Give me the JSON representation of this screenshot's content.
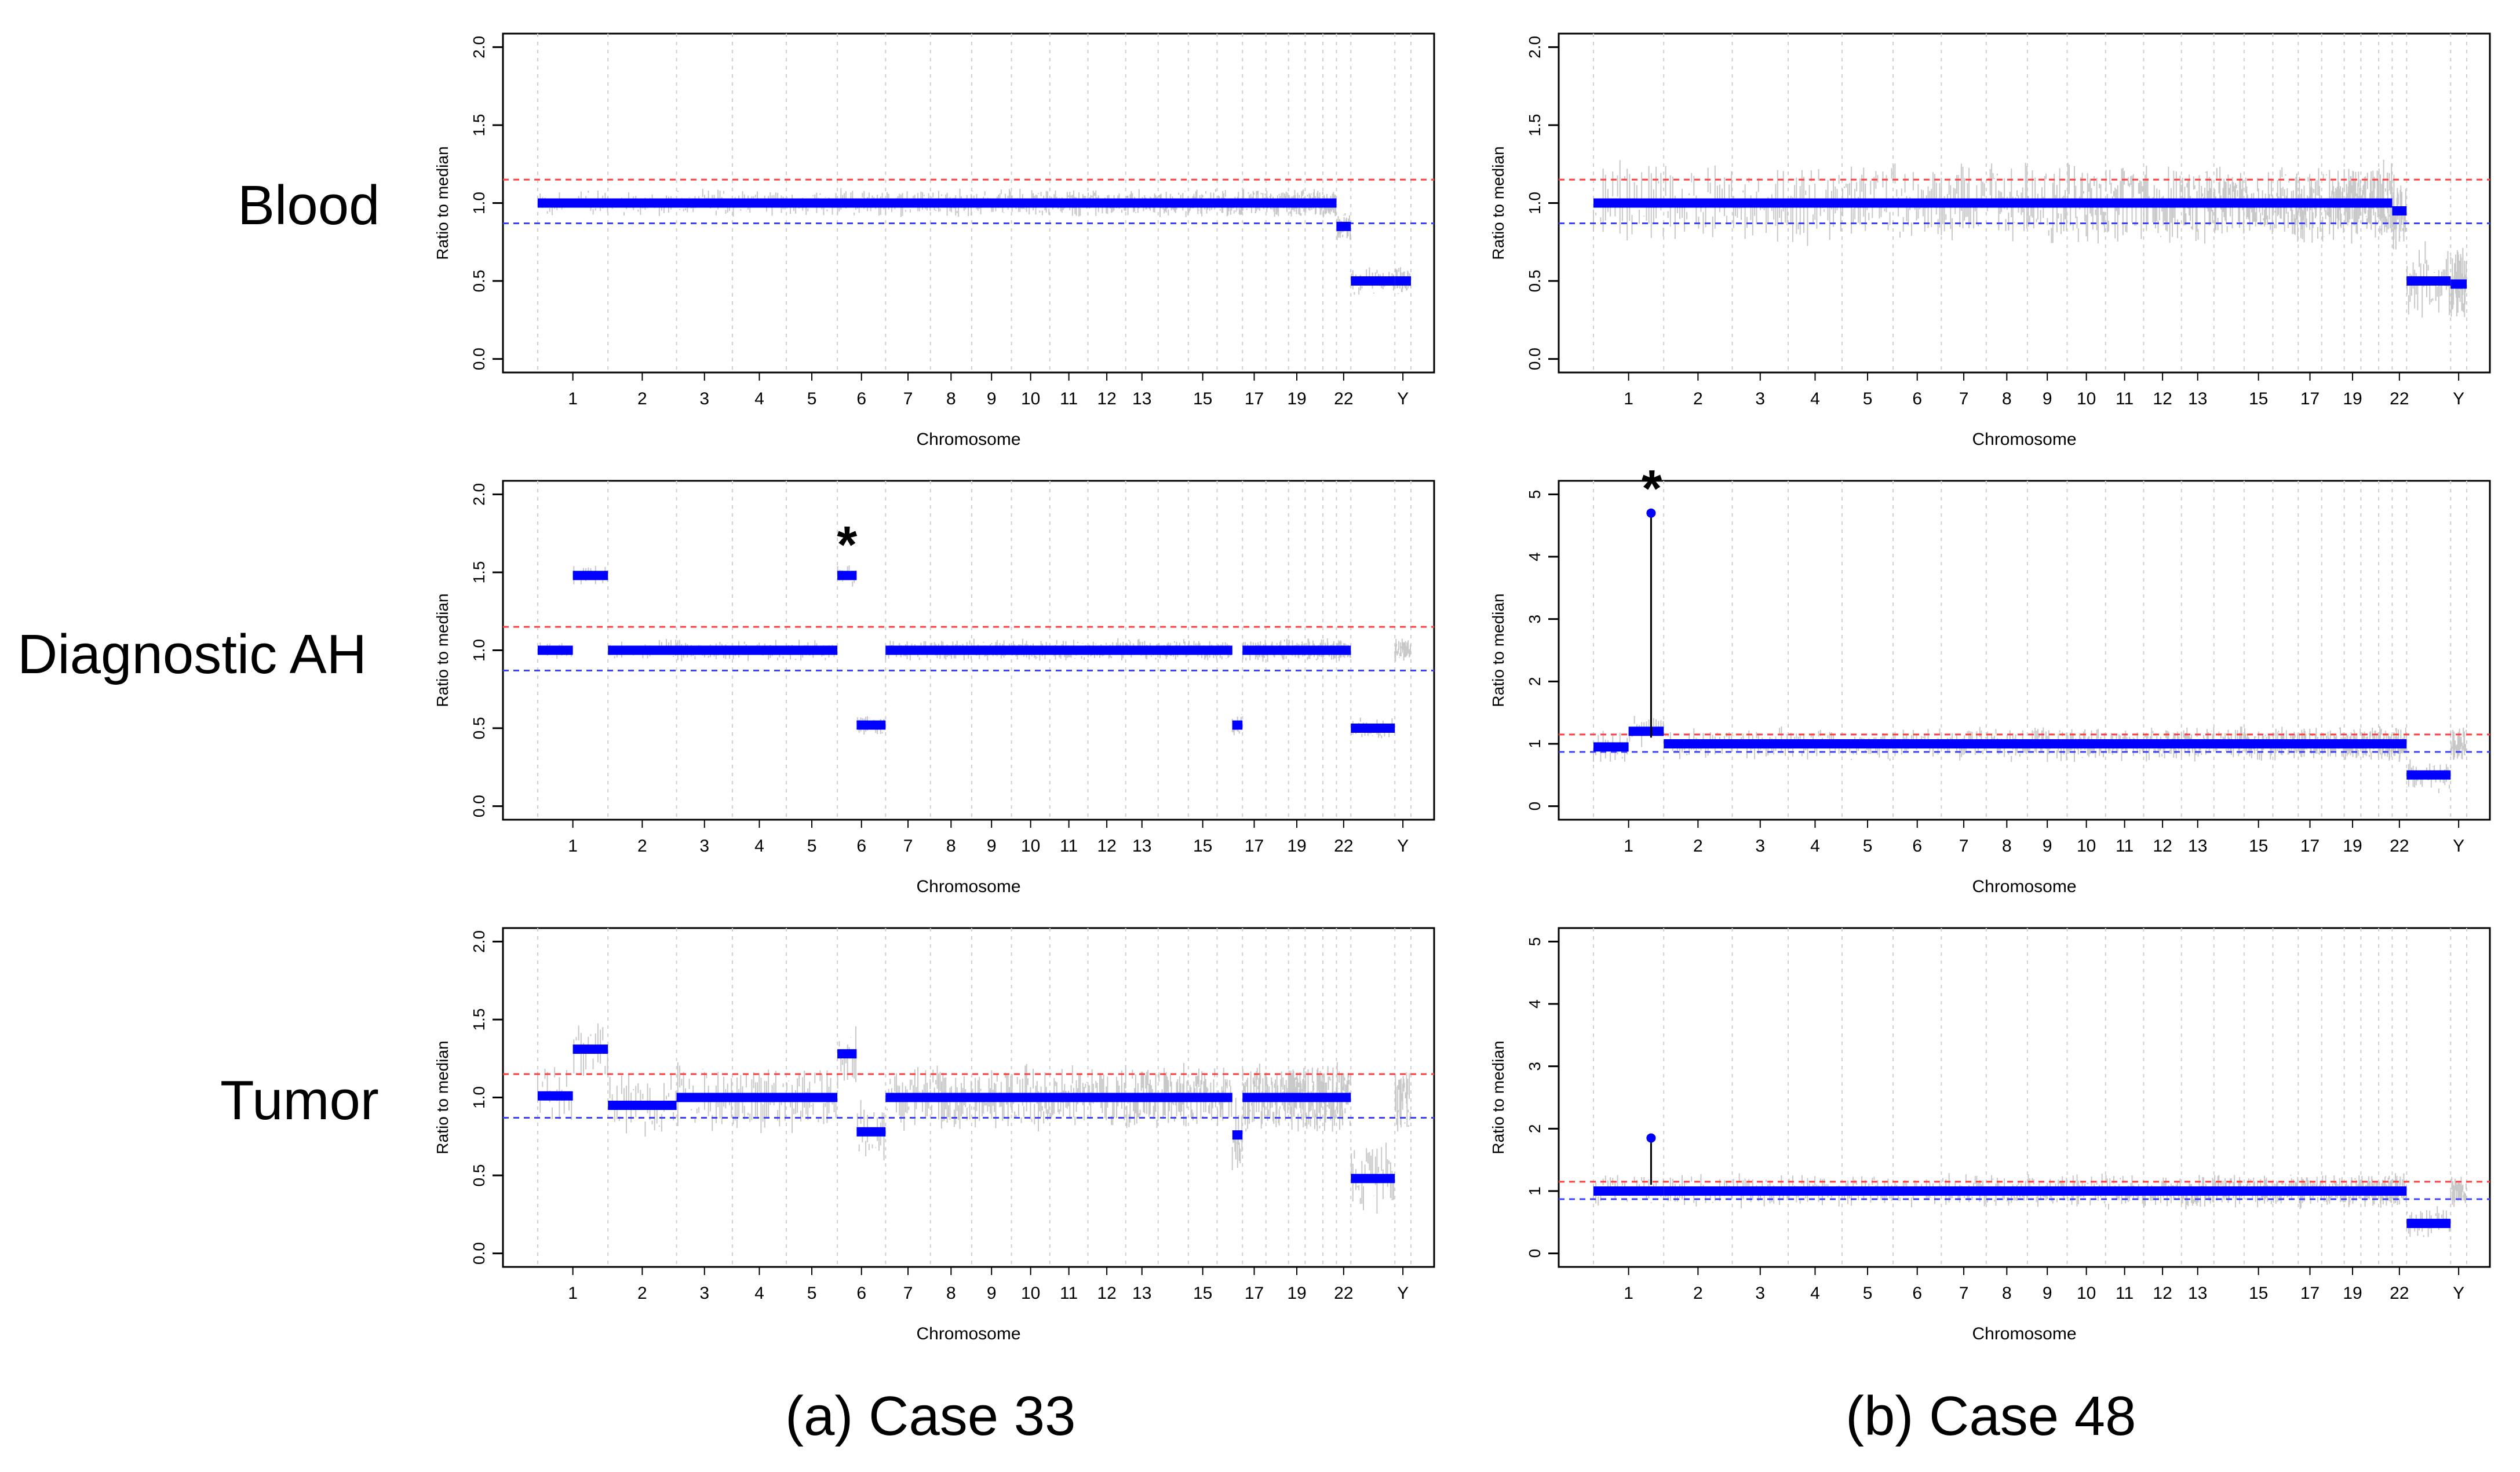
{
  "row_labels": [
    "Blood",
    "Diagnostic AH",
    "Tumor"
  ],
  "captions": [
    "(a) Case 33",
    "(b) Case 48"
  ],
  "chromosome_ticks": [
    "1",
    "2",
    "3",
    "4",
    "5",
    "6",
    "7",
    "8",
    "9",
    "10",
    "11",
    "12",
    "13",
    "15",
    "17",
    "19",
    "22",
    "Y"
  ],
  "colors": {
    "segment": "#0000ff",
    "upper_threshold": "#ff4040",
    "lower_threshold": "#4040ff",
    "noise": "#c8c8c8",
    "annotation_star": "#ff0000"
  },
  "chart_data": [
    {
      "type": "scatter",
      "case": "Case 33",
      "sample": "Blood",
      "xlabel": "Chromosome",
      "ylabel": "Ratio to median",
      "ylim": [
        0,
        2
      ],
      "yticks": [
        "0.0",
        "0.5",
        "1.0",
        "1.5",
        "2.0"
      ],
      "thresholds": {
        "upper": 1.15,
        "lower": 0.87
      },
      "noise": 0.05,
      "segments": [
        {
          "chr": "1-21",
          "value": 1.0
        },
        {
          "chr": "22",
          "value": 0.85
        },
        {
          "chr": "X",
          "value": 0.5
        },
        {
          "chr": "Y",
          "value": 0.5
        }
      ],
      "annotations": []
    },
    {
      "type": "scatter",
      "case": "Case 33",
      "sample": "Diagnostic AH",
      "xlabel": "Chromosome",
      "ylabel": "Ratio to median",
      "ylim": [
        0,
        2
      ],
      "yticks": [
        "0.0",
        "0.5",
        "1.0",
        "1.5",
        "2.0"
      ],
      "thresholds": {
        "upper": 1.15,
        "lower": 0.87
      },
      "noise": 0.04,
      "segments": [
        {
          "chr": "1p",
          "value": 1.0
        },
        {
          "chr": "1q",
          "value": 1.48
        },
        {
          "chr": "2-5",
          "value": 1.0
        },
        {
          "chr": "6p",
          "value": 1.48
        },
        {
          "chr": "6q",
          "value": 0.52
        },
        {
          "chr": "7-16",
          "value": 1.0
        },
        {
          "chr": "16q",
          "value": 0.52
        },
        {
          "chr": "17-21",
          "value": 1.0
        },
        {
          "chr": "X",
          "value": 0.5
        }
      ],
      "annotations": [
        {
          "label": "*",
          "chr": "6p",
          "value": 1.6
        }
      ]
    },
    {
      "type": "scatter",
      "case": "Case 33",
      "sample": "Tumor",
      "xlabel": "Chromosome",
      "ylabel": "Ratio to median",
      "ylim": [
        0,
        2
      ],
      "yticks": [
        "0.0",
        "0.5",
        "1.0",
        "1.5",
        "2.0"
      ],
      "thresholds": {
        "upper": 1.15,
        "lower": 0.87
      },
      "noise": 0.12,
      "segments": [
        {
          "chr": "1p",
          "value": 1.01
        },
        {
          "chr": "1q",
          "value": 1.31
        },
        {
          "chr": "2",
          "value": 0.95
        },
        {
          "chr": "3-5",
          "value": 1.0
        },
        {
          "chr": "6p",
          "value": 1.28
        },
        {
          "chr": "6q",
          "value": 0.78
        },
        {
          "chr": "7-16",
          "value": 1.0
        },
        {
          "chr": "16q",
          "value": 0.76
        },
        {
          "chr": "17-21",
          "value": 1.0
        },
        {
          "chr": "X",
          "value": 0.48
        }
      ],
      "annotations": []
    },
    {
      "type": "scatter",
      "case": "Case 48",
      "sample": "Blood",
      "xlabel": "Chromosome",
      "ylabel": "Ratio to median",
      "ylim": [
        0,
        2
      ],
      "yticks": [
        "0.0",
        "0.5",
        "1.0",
        "1.5",
        "2.0"
      ],
      "thresholds": {
        "upper": 1.15,
        "lower": 0.87
      },
      "noise": 0.14,
      "segments": [
        {
          "chr": "1-21",
          "value": 1.0
        },
        {
          "chr": "22",
          "value": 0.95
        },
        {
          "chr": "X",
          "value": 0.5
        },
        {
          "chr": "Y",
          "value": 0.48
        }
      ],
      "annotations": []
    },
    {
      "type": "scatter",
      "case": "Case 48",
      "sample": "Diagnostic AH",
      "xlabel": "Chromosome",
      "ylabel": "Ratio to median",
      "ylim": [
        0,
        5
      ],
      "yticks": [
        "0",
        "1",
        "2",
        "3",
        "4",
        "5"
      ],
      "thresholds": {
        "upper": 1.15,
        "lower": 0.87
      },
      "noise": 0.06,
      "segments": [
        {
          "chr": "1p",
          "value": 0.95
        },
        {
          "chr": "1q",
          "value": 1.2
        },
        {
          "chr": "1q-focal",
          "value": 4.7
        },
        {
          "chr": "2-21",
          "value": 1.0
        },
        {
          "chr": "X",
          "value": 0.5
        }
      ],
      "annotations": [
        {
          "label": "*",
          "chr": "1q-focal",
          "value": 4.9
        }
      ]
    },
    {
      "type": "scatter",
      "case": "Case 48",
      "sample": "Tumor",
      "xlabel": "Chromosome",
      "ylabel": "Ratio to median",
      "ylim": [
        0,
        5
      ],
      "yticks": [
        "0",
        "1",
        "2",
        "3",
        "4",
        "5"
      ],
      "thresholds": {
        "upper": 1.15,
        "lower": 0.87
      },
      "noise": 0.06,
      "segments": [
        {
          "chr": "1",
          "value": 1.0
        },
        {
          "chr": "1q-focal",
          "value": 1.85
        },
        {
          "chr": "2-21",
          "value": 1.0
        },
        {
          "chr": "X",
          "value": 0.48
        }
      ],
      "annotations": []
    }
  ]
}
